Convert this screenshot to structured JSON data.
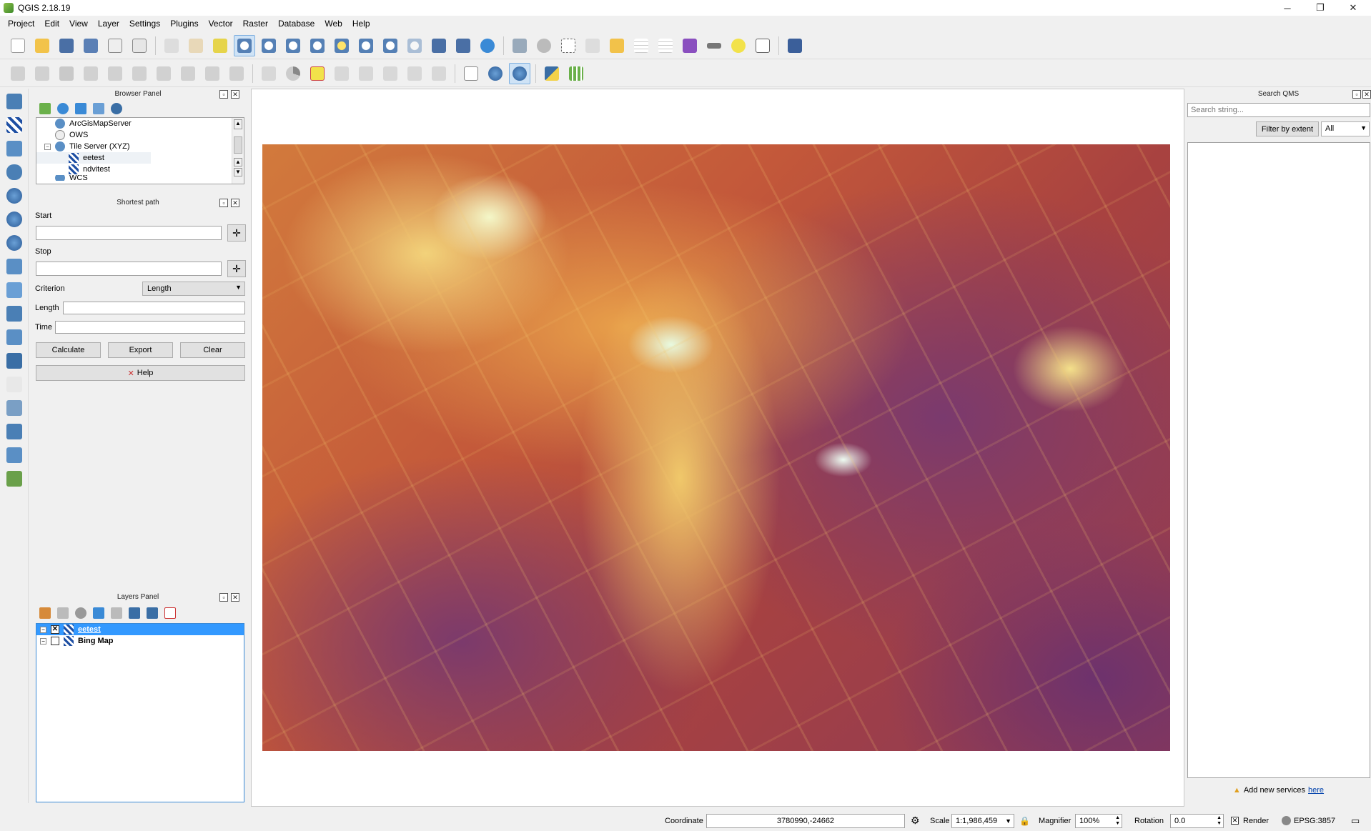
{
  "window": {
    "title": "QGIS 2.18.19",
    "minimize": "─",
    "restore": "❐",
    "close": "✕"
  },
  "menu": [
    "Project",
    "Edit",
    "View",
    "Layer",
    "Settings",
    "Plugins",
    "Vector",
    "Raster",
    "Database",
    "Web",
    "Help"
  ],
  "browser_panel": {
    "title": "Browser Panel",
    "items": [
      {
        "label": "ArcGisMapServer",
        "level": 1
      },
      {
        "label": "OWS",
        "level": 1
      },
      {
        "label": "Tile Server (XYZ)",
        "level": 1
      },
      {
        "label": "eetest",
        "level": 2
      },
      {
        "label": "ndvitest",
        "level": 2
      },
      {
        "label": "WCS",
        "level": 1
      }
    ]
  },
  "shortest_path": {
    "title": "Shortest path",
    "start_label": "Start",
    "stop_label": "Stop",
    "criterion_label": "Criterion",
    "criterion_value": "Length",
    "length_label": "Length",
    "time_label": "Time",
    "calculate": "Calculate",
    "export": "Export",
    "clear": "Clear",
    "help": "Help"
  },
  "layers_panel": {
    "title": "Layers Panel",
    "layers": [
      {
        "name": "eetest",
        "checked": true,
        "selected": true
      },
      {
        "name": "Bing Map",
        "checked": false,
        "selected": false
      }
    ]
  },
  "qms": {
    "title": "Search QMS",
    "search_placeholder": "Search string...",
    "filter_button": "Filter by extent",
    "filter_value": "All",
    "add_services_text": "Add new services",
    "add_services_link": "here"
  },
  "status": {
    "coordinate_label": "Coordinate",
    "coordinate_value": "3780990,-24662",
    "scale_label": "Scale",
    "scale_value": "1:1,986,459",
    "magnifier_label": "Magnifier",
    "magnifier_value": "100%",
    "rotation_label": "Rotation",
    "rotation_value": "0.0",
    "render_label": "Render",
    "crs": "EPSG:3857"
  }
}
